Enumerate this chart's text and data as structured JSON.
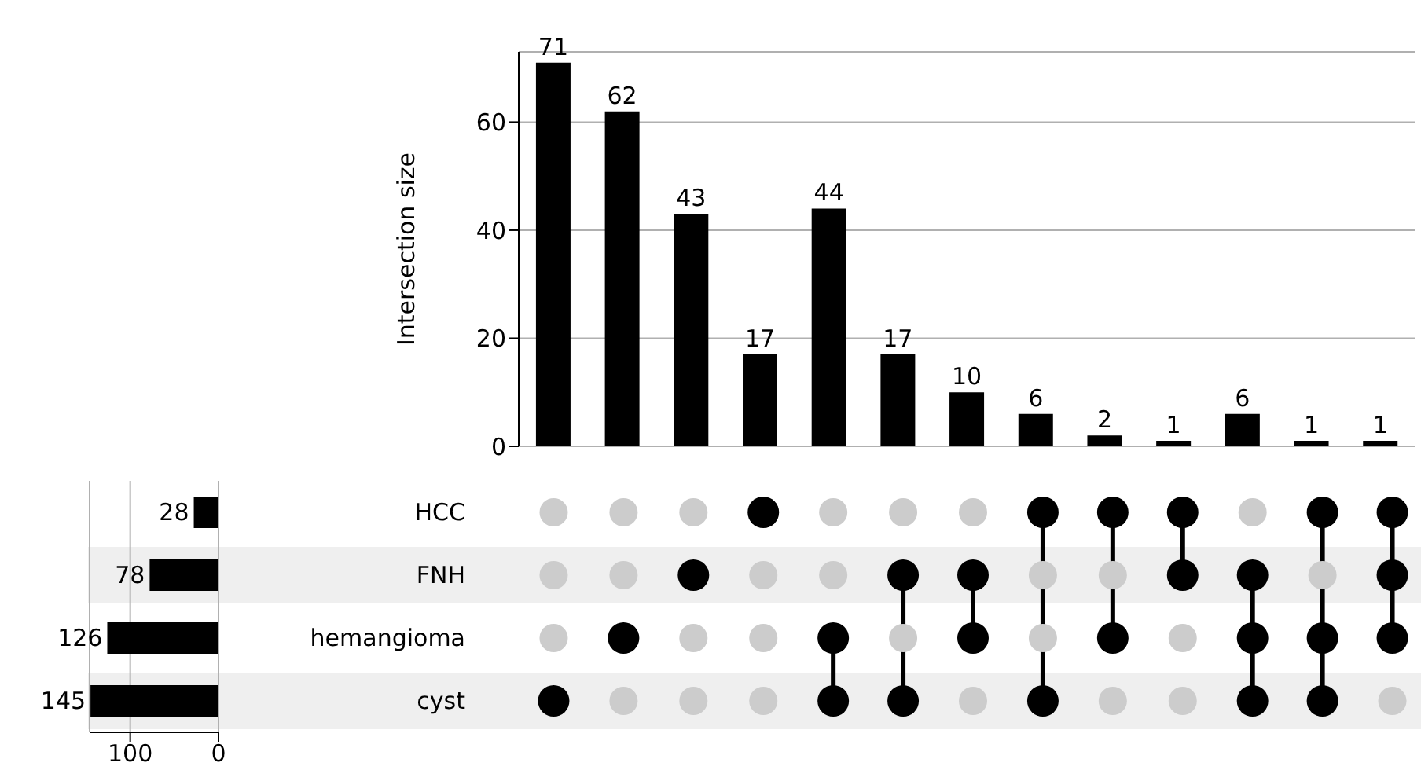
{
  "chart_data": [
    {
      "type": "bar",
      "categories": [
        null,
        null,
        null,
        null,
        null,
        null,
        null,
        null,
        null,
        null,
        null,
        null,
        null
      ],
      "values": [
        71,
        62,
        43,
        17,
        44,
        17,
        10,
        6,
        2,
        1,
        6,
        1,
        1
      ],
      "color": "#000000",
      "ylabel": "Intersection size",
      "ylim": [
        0,
        73
      ],
      "yticks": [
        0,
        20,
        40,
        60
      ],
      "grid": "y",
      "data_labels": true,
      "tick_labels": "y"
    },
    {
      "type": "other",
      "categories": [
        "HCC",
        "FNH",
        "hemangioma",
        "cyst"
      ]
    },
    {
      "type": "bar",
      "orientation": "horizontal",
      "categories": [
        null,
        null,
        null,
        null
      ],
      "values": [
        28,
        78,
        126,
        145
      ],
      "color": "#000000",
      "xlim": [
        146,
        0
      ],
      "xticks": [
        100,
        0
      ],
      "grid": "x",
      "data_labels": true,
      "tick_labels": "x"
    }
  ]
}
